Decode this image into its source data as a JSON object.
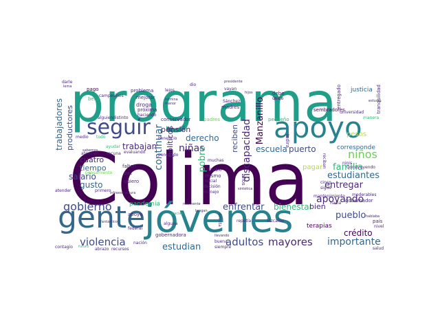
{
  "word_cloud": {
    "palette": {
      "deep_purple": "#440154",
      "purple": "#482878",
      "indigo": "#3e4a89",
      "blue": "#31688e",
      "teal_blue": "#26828e",
      "teal": "#1f9e89",
      "green": "#35b779",
      "light_green": "#6ece58",
      "lime": "#b5de2b",
      "yellow": "#d8e219"
    },
    "words": {
      "colima": "Colima",
      "programa": "programa",
      "jovenes": "jóvenes",
      "gente": "gente",
      "apoyo": "apoyo",
      "seguir": "seguir",
      "gobierno": "gobierno",
      "violencia": "violencia",
      "apoyando": "apoyando",
      "adultos": "adultos",
      "mayores": "mayores",
      "importante": "importante",
      "estudiantes": "estudiantes",
      "familia": "familia",
      "entregar": "entregar",
      "ninos": "niños",
      "ninas": "niñas",
      "pueblo": "pueblo",
      "credito": "crédito",
      "enfrentar": "enfrentar",
      "bienestar": "bienestar",
      "estudian": "estudian",
      "trabajan": "trabajan",
      "derecho": "derecho",
      "salario": "salario",
      "tiempo": "tiempo",
      "cuatro": "cuatro",
      "gusto": "gusto",
      "pension": "pensión",
      "escuela": "escuela",
      "puerto": "puerto",
      "pesos": "pesos",
      "pagar": "pagar",
      "corresponde": "corresponde",
      "bien": "bien",
      "trabajadores": "trabajadores",
      "productores": "productores",
      "continuar": "continuar",
      "politicos": "políticos",
      "pobre": "pobre",
      "discapacidad": "discapacidad",
      "manzanillo": "Manzanillo",
      "reciben": "reciben",
      "justicia": "justicia",
      "pandemia": "pandemia",
      "terapias": "terapias",
      "problema": "problema",
      "pago": "pago",
      "beca": "beca",
      "mejorar": "mejorar",
      "droga": "droga",
      "proxima": "próxima",
      "conservador": "conservador",
      "alguiendistinto": "alguiendistinto",
      "padres": "padres",
      "madres": "madres",
      "debe": "debe",
      "unico": "único",
      "lejos": "lejos",
      "dio": "dio",
      "vayan": "vayan",
      "darle": "darle",
      "lema": "lema",
      "campesinos": "campesinos",
      "haciendo": "haciendo",
      "nomina": "nómina",
      "menor": "menor",
      "sanchez": "Sánchez",
      "pequeno": "pequeño",
      "sembradores": "sembradores",
      "universidad": "universidad",
      "manera": "manera",
      "entregado": "entregado",
      "tranquilidad": "tranquilidad",
      "medio": "medio",
      "todo": "todo",
      "beneficio": "beneficio",
      "pensando": "pensando",
      "atencion": "atención",
      "ayudar": "ayudar",
      "vacuna": "vacuna",
      "evaluando": "evaluando",
      "sabemos": "sabemos",
      "pensamiento": "pensamiento",
      "paz": "paz",
      "quiero": "quiero",
      "mismo": "mismo",
      "apoya": "apoya",
      "alguna": "alguna",
      "federal": "federal",
      "gobernador": "gobernador",
      "gobernadora": "gobernadora",
      "nacion": "nación",
      "abrazo": "abrazo",
      "recursos": "recursos",
      "siempre": "siempre",
      "contagio": "contagio",
      "futuro": "futuro",
      "atender": "atender",
      "primero": "primero",
      "hablo": "hablo",
      "decision": "decisión",
      "manejo": "manejo",
      "social": "social",
      "muchas": "muchas",
      "sintetica": "sintética",
      "repetia": "repetía",
      "vizcaino": "Vizcaíno",
      "hacia": "hacia",
      "pais": "país",
      "nivel": "nivel",
      "salud": "salud",
      "moderables": "moderables",
      "hablaba": "hablaba",
      "cinco": "cinco",
      "sigue": "sigue",
      "ninis": "ninis",
      "mantenimiento": "mantenimiento",
      "construyendo": "Construyendo",
      "indira": "Indira",
      "anos": "años",
      "gracias": "gracias",
      "reciban": "reciban",
      "tengan": "tengan",
      "buena": "buena",
      "llevando": "llevando",
      "falten": "falten",
      "hijos": "hijos",
      "realmente": "realmente",
      "fantastico": "fantástico",
      "directa": "directa",
      "proxima_small": "próxima",
      "infraestructura": "infraestructura",
      "presidente": "presidente",
      "estudio": "estudio"
    }
  }
}
